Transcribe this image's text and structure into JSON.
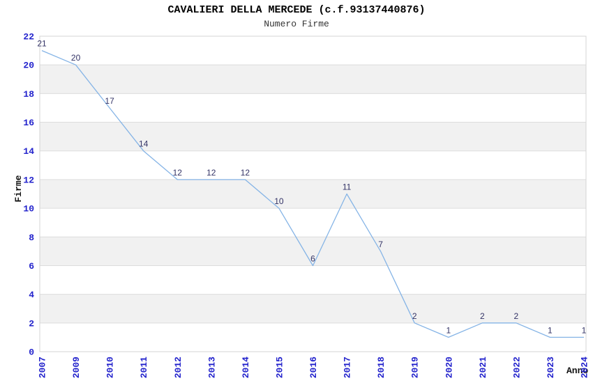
{
  "chart_data": {
    "type": "line",
    "title": "CAVALIERI DELLA MERCEDE (c.f.93137440876)",
    "subtitle": "Numero Firme",
    "xlabel": "Anno",
    "ylabel": "Firme",
    "categories": [
      "2007",
      "2009",
      "2010",
      "2011",
      "2012",
      "2013",
      "2014",
      "2015",
      "2016",
      "2017",
      "2018",
      "2019",
      "2020",
      "2021",
      "2022",
      "2023",
      "2024"
    ],
    "values": [
      21,
      20,
      17,
      14,
      12,
      12,
      12,
      10,
      6,
      11,
      7,
      2,
      1,
      2,
      2,
      1,
      1
    ],
    "ylim": [
      0,
      22
    ],
    "yticks": [
      0,
      2,
      4,
      6,
      8,
      10,
      12,
      14,
      16,
      18,
      20,
      22
    ],
    "grid": "horizontal-bands-alternating",
    "legend": "none",
    "data_labels": "above-points",
    "colors": {
      "line": "#85B4E6",
      "tick_label": "#2222CC",
      "data_label": "#333366",
      "band": "#F1F1F1",
      "gridline": "#DDDDDD",
      "border": "#D4D4D4",
      "title": "#000000",
      "subtitle": "#333333",
      "axis_label": "#111111"
    }
  }
}
